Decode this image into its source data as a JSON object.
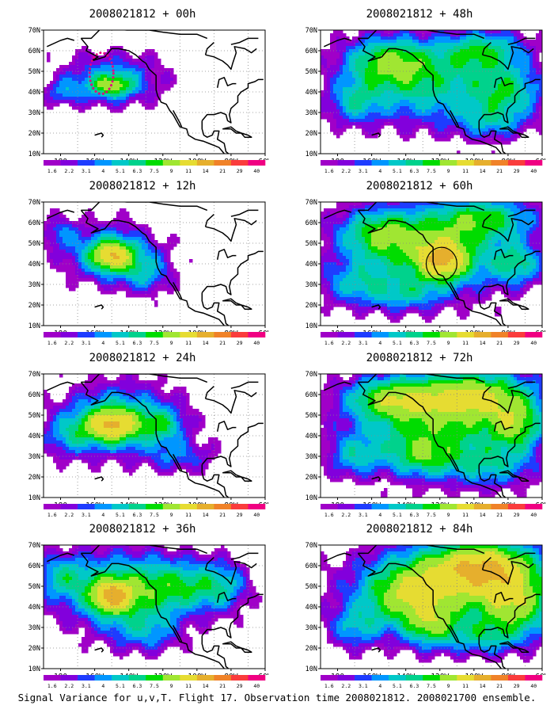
{
  "figure": {
    "caption": "Signal Variance for u,v,T. Flight 17. Observation time 2008021812. 2008021700 ensemble."
  },
  "chart_data": {
    "type": "heatmap",
    "map": {
      "lon_range": [
        -190,
        -60
      ],
      "lat_range": [
        10,
        70
      ],
      "xticks": [
        "180",
        "160W",
        "140W",
        "120W",
        "100W",
        "80W",
        "60W"
      ],
      "yticks": [
        "10N",
        "20N",
        "30N",
        "40N",
        "50N",
        "60N",
        "70N"
      ],
      "grid": "dotted",
      "coastlines": true
    },
    "colorbar": {
      "levels": [
        "1.6",
        "2.2",
        "3.1",
        "4",
        "5.1",
        "6.3",
        "7.5",
        "9",
        "11",
        "14",
        "21",
        "29",
        "40"
      ],
      "colors": [
        "#a000c8",
        "#8200dc",
        "#1e3cff",
        "#0096ff",
        "#00c8c8",
        "#00d28c",
        "#00dc00",
        "#a0e632",
        "#e6dc32",
        "#e6af2d",
        "#f08228",
        "#fa3c3c",
        "#f00082"
      ]
    },
    "panels": [
      {
        "title": "2008021812 + 00h",
        "blobs": [
          [
            -150,
            46,
            28,
            12,
            4.5
          ],
          [
            -150,
            43,
            12,
            5,
            6
          ],
          [
            -178,
            40,
            10,
            6,
            3
          ]
        ],
        "markers": [
          {
            "shape": "dotted-ellipse",
            "lon": -156,
            "lat": 49,
            "rx_deg": 7,
            "ry_deg": 10,
            "color": "#e6007e"
          }
        ]
      },
      {
        "title": "2008021812 + 48h",
        "blobs": [
          [
            -125,
            42,
            45,
            18,
            5.5
          ],
          [
            -150,
            55,
            25,
            12,
            7
          ],
          [
            -95,
            60,
            25,
            10,
            6
          ],
          [
            -80,
            40,
            20,
            12,
            5
          ],
          [
            -170,
            35,
            15,
            10,
            4
          ],
          [
            -90,
            25,
            20,
            8,
            3.5
          ]
        ],
        "markers": []
      },
      {
        "title": "2008021812 + 12h",
        "blobs": [
          [
            -150,
            45,
            25,
            13,
            5.5
          ],
          [
            -150,
            44,
            12,
            7,
            8
          ],
          [
            -130,
            35,
            15,
            10,
            3.5
          ],
          [
            -180,
            55,
            10,
            8,
            3
          ]
        ],
        "markers": []
      },
      {
        "title": "2008021812 + 60h",
        "blobs": [
          [
            -125,
            45,
            45,
            20,
            6
          ],
          [
            -118,
            42,
            15,
            10,
            9
          ],
          [
            -155,
            55,
            25,
            12,
            6
          ],
          [
            -95,
            62,
            30,
            10,
            6.5
          ],
          [
            -75,
            40,
            15,
            10,
            5
          ],
          [
            -170,
            30,
            20,
            10,
            4
          ],
          [
            -140,
            25,
            20,
            8,
            3.5
          ]
        ],
        "markers": [
          {
            "shape": "circle",
            "lon": -119,
            "lat": 40,
            "rx_deg": 9,
            "ry_deg": 8,
            "color": "#000000"
          }
        ]
      },
      {
        "title": "2008021812 + 24h",
        "blobs": [
          [
            -145,
            48,
            32,
            16,
            6
          ],
          [
            -150,
            45,
            15,
            8,
            8.5
          ],
          [
            -120,
            45,
            12,
            8,
            4
          ],
          [
            -175,
            40,
            15,
            10,
            3.5
          ],
          [
            -110,
            30,
            20,
            8,
            3
          ]
        ],
        "markers": []
      },
      {
        "title": "2008021812 + 72h",
        "blobs": [
          [
            -120,
            45,
            50,
            20,
            6.5
          ],
          [
            -100,
            60,
            35,
            12,
            8
          ],
          [
            -150,
            58,
            25,
            10,
            6.5
          ],
          [
            -130,
            30,
            20,
            10,
            5
          ],
          [
            -75,
            45,
            15,
            12,
            6
          ],
          [
            -170,
            30,
            15,
            10,
            4
          ],
          [
            -90,
            25,
            25,
            10,
            4
          ]
        ],
        "markers": []
      },
      {
        "title": "2008021812 + 36h",
        "blobs": [
          [
            -145,
            48,
            35,
            18,
            6.5
          ],
          [
            -150,
            45,
            12,
            8,
            9
          ],
          [
            -110,
            50,
            25,
            12,
            5
          ],
          [
            -180,
            55,
            15,
            10,
            4
          ],
          [
            -130,
            28,
            20,
            10,
            3.5
          ],
          [
            -85,
            50,
            15,
            12,
            4
          ]
        ],
        "markers": []
      },
      {
        "title": "2008021812 + 84h",
        "blobs": [
          [
            -110,
            50,
            55,
            20,
            7
          ],
          [
            -95,
            60,
            30,
            12,
            9
          ],
          [
            -140,
            45,
            25,
            15,
            6
          ],
          [
            -125,
            30,
            15,
            10,
            5.5
          ],
          [
            -75,
            40,
            20,
            15,
            6.5
          ],
          [
            -170,
            30,
            15,
            10,
            4
          ],
          [
            -95,
            25,
            20,
            8,
            4
          ]
        ],
        "markers": []
      }
    ]
  }
}
